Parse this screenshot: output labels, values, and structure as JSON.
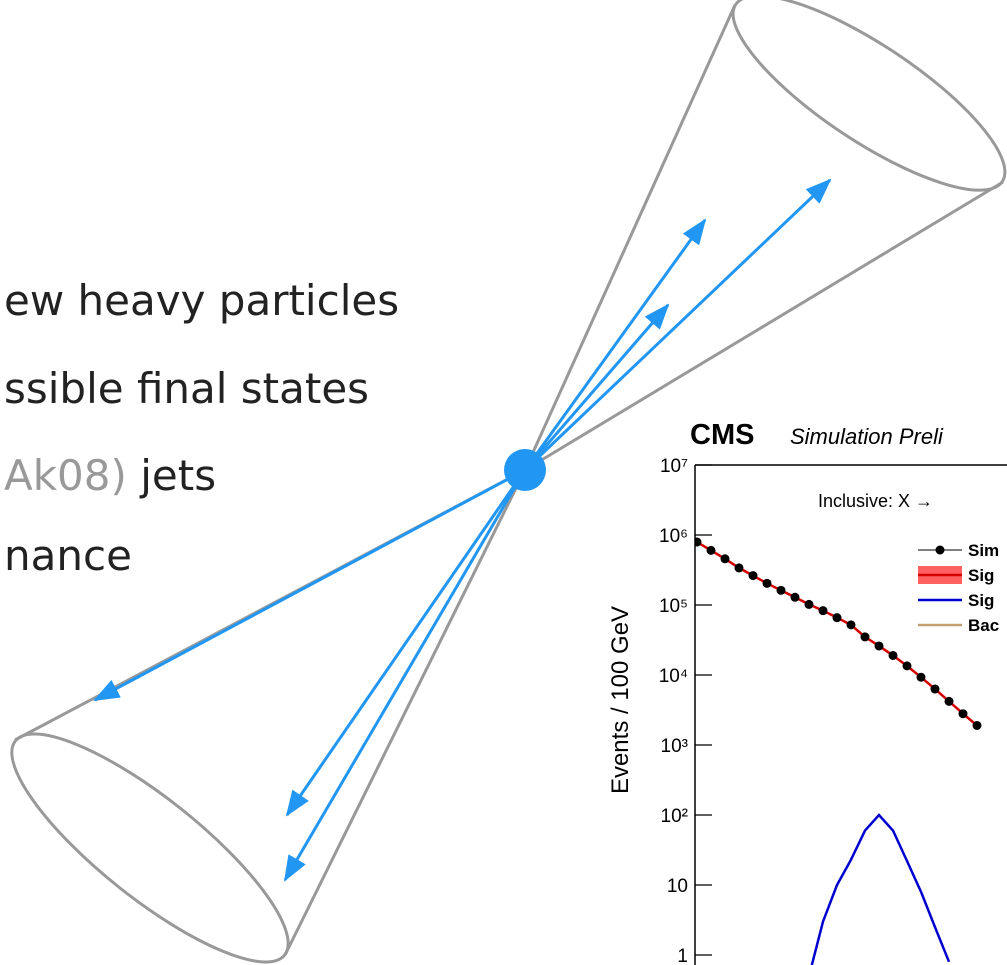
{
  "slide": {
    "lines": [
      {
        "parts": [
          "ew heavy particles"
        ]
      },
      {
        "parts": [
          "ssible final states"
        ]
      },
      {
        "parts": [
          "Ak08)",
          "jets"
        ]
      },
      {
        "parts": [
          "nance"
        ]
      }
    ]
  },
  "chart_data": {
    "type": "line",
    "title": "CMS",
    "subtitle": "Simulation Preli",
    "annotation": "Inclusive: X →",
    "y_label": "Events / 100 GeV",
    "log_y": true,
    "categories": [
      null,
      null,
      null,
      null,
      null,
      null,
      null,
      null,
      null,
      null,
      null,
      null,
      null,
      null,
      null,
      null,
      null,
      null,
      null,
      null,
      null
    ],
    "ylim": [
      1,
      10000000
    ],
    "yticks": [
      {
        "value": 1,
        "label": "1"
      },
      {
        "value": 10,
        "label": "10"
      },
      {
        "value": 100,
        "label": "10²"
      },
      {
        "value": 1000,
        "label": "10³"
      },
      {
        "value": 10000,
        "label": "10⁴"
      },
      {
        "value": 100000,
        "label": "10⁵"
      },
      {
        "value": 1000000,
        "label": "10⁶"
      },
      {
        "value": 10000000,
        "label": "10⁷"
      }
    ],
    "series": [
      {
        "style": "line",
        "color": "#d40000",
        "values": [
          794000,
          603000,
          457000,
          339000,
          263000,
          204000,
          162000,
          129000,
          102000,
          83000,
          66000,
          52000,
          35000,
          26000,
          19000,
          13500,
          9300,
          6300,
          4200,
          2800,
          1900
        ]
      },
      {
        "style": "points",
        "color": "#000000",
        "values": [
          794000,
          603000,
          457000,
          339000,
          263000,
          204000,
          162000,
          129000,
          102000,
          83000,
          66000,
          52000,
          35000,
          26000,
          19000,
          13500,
          9300,
          6300,
          4200,
          2800,
          1900
        ]
      },
      {
        "style": "line",
        "color": "#0000d0",
        "values": [
          null,
          null,
          null,
          null,
          null,
          null,
          null,
          null,
          0.5,
          3,
          10,
          23,
          60,
          100,
          60,
          22,
          8,
          2.5,
          0.8,
          null,
          null
        ]
      }
    ],
    "legend": [
      {
        "label": "Sim",
        "color": "#000000",
        "kind": "point"
      },
      {
        "label": "Sig",
        "color": "#ff6060",
        "kind": "band"
      },
      {
        "label": "Sig",
        "color": "#0000d0",
        "kind": "line"
      },
      {
        "label": "Bac",
        "color": "#c8a070",
        "kind": "line"
      }
    ]
  }
}
